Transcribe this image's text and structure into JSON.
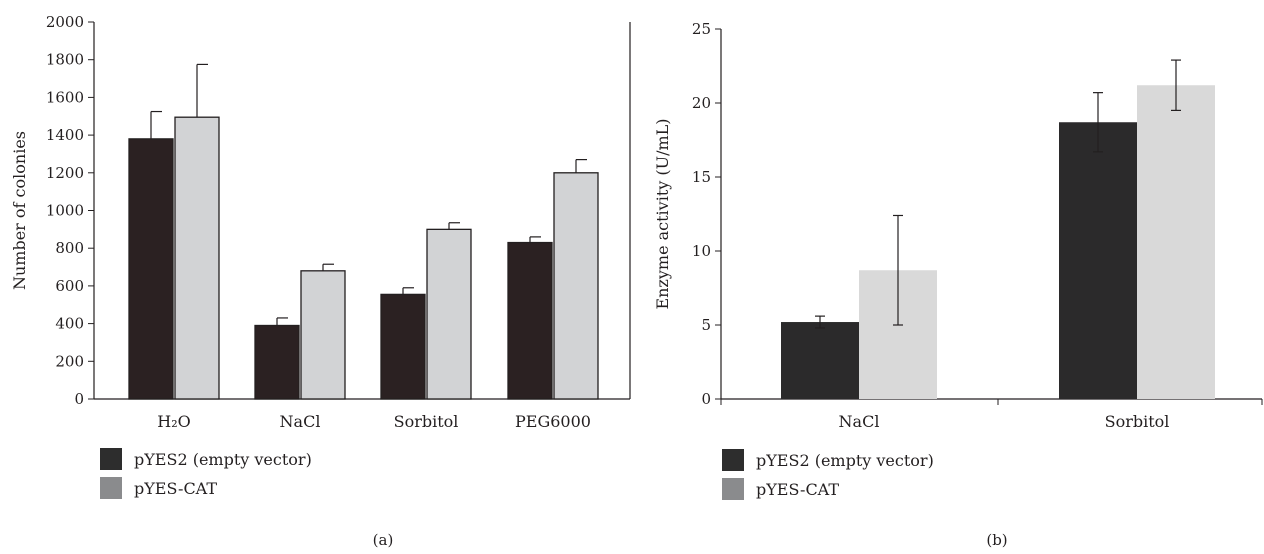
{
  "chart_data": [
    {
      "type": "bar",
      "panel_label": "(a)",
      "categories": [
        "H₂O",
        "NaCl",
        "Sorbitol",
        "PEG6000"
      ],
      "ylabel": "Number of colonies",
      "xlabel": "",
      "ylim": [
        0,
        2000
      ],
      "yticks": [
        "0",
        "200",
        "400",
        "600",
        "800",
        "1000",
        "1200",
        "1400",
        "1600",
        "1800",
        "2000"
      ],
      "grid": false,
      "legend_position": "bottom-left",
      "series": [
        {
          "name": "pYES2 (empty vector)",
          "color": "#2b2122",
          "values": [
            1380,
            390,
            555,
            830
          ],
          "errors": [
            145,
            40,
            35,
            30
          ]
        },
        {
          "name": "pYES-CAT",
          "color": "#d2d3d5",
          "values": [
            1495,
            680,
            900,
            1200
          ],
          "errors": [
            280,
            35,
            35,
            70
          ]
        }
      ]
    },
    {
      "type": "bar",
      "panel_label": "(b)",
      "categories": [
        "NaCl",
        "Sorbitol"
      ],
      "ylabel": "Enzyme activity (U/mL)",
      "xlabel": "",
      "ylim": [
        0,
        25
      ],
      "yticks": [
        "0",
        "5",
        "10",
        "15",
        "20",
        "25"
      ],
      "grid": false,
      "legend_position": "bottom-left",
      "series": [
        {
          "name": "pYES2 (empty vector)",
          "color": "#2b2a2b",
          "values": [
            5.2,
            18.7
          ],
          "errors": [
            0.4,
            2.0
          ]
        },
        {
          "name": "pYES-CAT",
          "color": "#d9d9d9",
          "values": [
            8.7,
            21.2
          ],
          "errors": [
            3.7,
            1.7
          ]
        }
      ]
    }
  ],
  "legend_colors": {
    "series1": "#2d2d2d",
    "series2": "#8a8b8d"
  }
}
